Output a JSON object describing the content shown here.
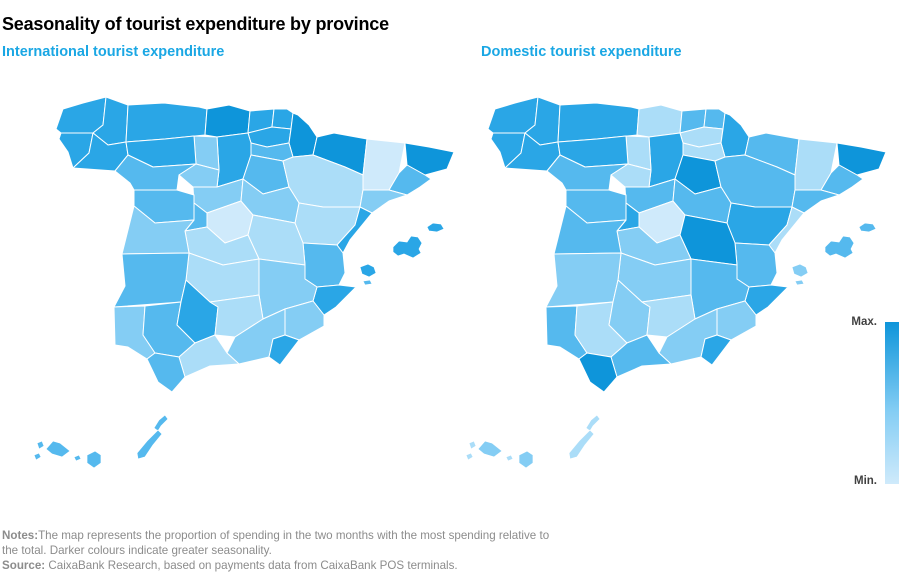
{
  "title": "Seasonality of tourist expenditure by province",
  "maps": [
    {
      "key": "international",
      "label": "International tourist expenditure"
    },
    {
      "key": "domestic",
      "label": "Domestic tourist expenditure"
    }
  ],
  "legend": {
    "max_label": "Max.",
    "min_label": "Min."
  },
  "footer": {
    "notes_label": "Notes:",
    "notes_text": "The map represents the proportion of spending in the two months with the most spending relative to the total. Darker colours indicate greater seasonality.",
    "source_label": "Source:",
    "source_text": "CaixaBank Research, based on payments data from CaixaBank POS terminals."
  },
  "colors": {
    "title_text": "#000000",
    "subtitle_accent": "#1aa7e4",
    "footer_text": "#8c8c8c",
    "legend_label_text": "#414141",
    "map_border": "#ffffff"
  },
  "chart_data": {
    "type": "heatmap",
    "subtype": "choropleth_map_pair",
    "title": "Seasonality of tourist expenditure by province",
    "unit": "relative seasonality intensity, estimated from colour: 1 = Min. (lightest) to 6 = Max. (darkest)",
    "legend_position": "right",
    "legend": {
      "max": "Max.",
      "min": "Min."
    },
    "color_scale": [
      "#cfeafb",
      "#abddf8",
      "#84cdf4",
      "#55b9ee",
      "#2aa6e6",
      "#0e95da"
    ],
    "series": [
      {
        "key": "international",
        "name": "International tourist expenditure",
        "values": {
          "acoruna": 5,
          "lugo": 5,
          "pontevedra": 5,
          "ourense": 5,
          "asturias": 5,
          "cantabria": 6,
          "bizkaia": 5,
          "gipuzkoa": 5,
          "alava": 5,
          "navarra": 6,
          "larioja": 4,
          "burgos": 5,
          "palencia": 3,
          "leon": 5,
          "zamora": 4,
          "valladolid": 3,
          "soria": 4,
          "segovia": 3,
          "avila": 4,
          "salamanca": 4,
          "huesca": 6,
          "zaragoza": 2,
          "lleida": 1,
          "girona": 6,
          "barcelona": 4,
          "tarragona": 3,
          "teruel": 2,
          "castellon": 5,
          "valencia": 4,
          "alicante": 5,
          "madrid": 1,
          "guadalajara": 3,
          "cuenca": 2,
          "toledo": 2,
          "ciudadreal": 2,
          "albacete": 3,
          "caceres": 3,
          "badajoz": 4,
          "murcia": 3,
          "huelva": 3,
          "sevilla": 4,
          "cordoba": 5,
          "jaen": 2,
          "granada": 3,
          "malaga": 2,
          "cadiz": 4,
          "almeria": 5,
          "mallorca": 5,
          "menorca": 5,
          "ibiza": 5,
          "formentera": 4,
          "tenerife": 4,
          "grancanaria": 4,
          "lapalma": 4,
          "elhierro": 4,
          "lagomera": 4,
          "fuerteventura": 4,
          "lanzarote": 4
        }
      },
      {
        "key": "domestic",
        "name": "Domestic tourist expenditure",
        "values": {
          "acoruna": 5,
          "lugo": 5,
          "pontevedra": 5,
          "ourense": 5,
          "asturias": 5,
          "cantabria": 2,
          "bizkaia": 4,
          "gipuzkoa": 4,
          "alava": 2,
          "navarra": 5,
          "larioja": 2,
          "burgos": 5,
          "palencia": 2,
          "leon": 5,
          "zamora": 4,
          "valladolid": 2,
          "soria": 6,
          "segovia": 4,
          "avila": 5,
          "salamanca": 4,
          "huesca": 4,
          "zaragoza": 4,
          "lleida": 2,
          "girona": 6,
          "barcelona": 4,
          "tarragona": 4,
          "teruel": 5,
          "castellon": 2,
          "valencia": 4,
          "alicante": 5,
          "madrid": 1,
          "guadalajara": 4,
          "cuenca": 6,
          "toledo": 3,
          "ciudadreal": 3,
          "albacete": 4,
          "caceres": 4,
          "badajoz": 3,
          "murcia": 3,
          "huelva": 4,
          "sevilla": 2,
          "cordoba": 3,
          "jaen": 2,
          "granada": 3,
          "malaga": 4,
          "cadiz": 6,
          "almeria": 5,
          "mallorca": 4,
          "menorca": 4,
          "ibiza": 3,
          "formentera": 3,
          "tenerife": 3,
          "grancanaria": 3,
          "lapalma": 2,
          "elhierro": 2,
          "lagomera": 2,
          "fuerteventura": 2,
          "lanzarote": 2
        }
      }
    ]
  }
}
